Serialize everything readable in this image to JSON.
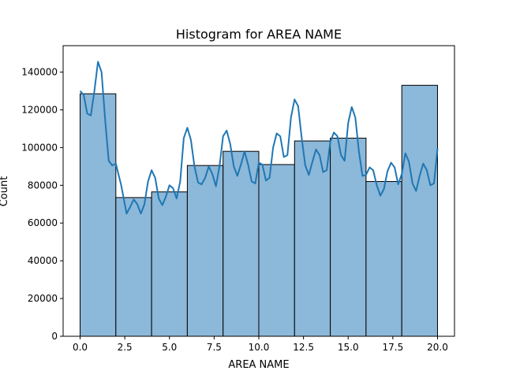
{
  "chart_data": {
    "type": "bar",
    "title": "Histogram for AREA NAME",
    "xlabel": "AREA NAME",
    "ylabel": "Count",
    "xlim": [
      -0.95,
      20.95
    ],
    "ylim": [
      0,
      154000
    ],
    "xticks": [
      0.0,
      2.5,
      5.0,
      7.5,
      10.0,
      12.5,
      15.0,
      17.5,
      20.0
    ],
    "xtick_labels": [
      "0.0",
      "2.5",
      "5.0",
      "7.5",
      "10.0",
      "12.5",
      "15.0",
      "17.5",
      "20.0"
    ],
    "yticks": [
      0,
      20000,
      40000,
      60000,
      80000,
      100000,
      120000,
      140000
    ],
    "ytick_labels": [
      "0",
      "20000",
      "40000",
      "60000",
      "80000",
      "100000",
      "120000",
      "140000"
    ],
    "bins": [
      {
        "x0": 0,
        "x1": 2,
        "count": 128500
      },
      {
        "x0": 2,
        "x1": 4,
        "count": 73500
      },
      {
        "x0": 4,
        "x1": 6,
        "count": 76500
      },
      {
        "x0": 6,
        "x1": 8,
        "count": 90500
      },
      {
        "x0": 8,
        "x1": 10,
        "count": 98000
      },
      {
        "x0": 10,
        "x1": 12,
        "count": 91000
      },
      {
        "x0": 12,
        "x1": 14,
        "count": 103500
      },
      {
        "x0": 14,
        "x1": 16,
        "count": 105000
      },
      {
        "x0": 16,
        "x1": 18,
        "count": 82000
      },
      {
        "x0": 18,
        "x1": 20,
        "count": 133000
      }
    ],
    "kde": {
      "x": [
        0,
        0.2,
        0.4,
        0.6,
        0.8,
        1.0,
        1.2,
        1.4,
        1.6,
        1.8,
        2.0,
        2.3,
        2.6,
        2.8,
        3.0,
        3.2,
        3.4,
        3.6,
        3.8,
        4.0,
        4.2,
        4.4,
        4.6,
        4.8,
        5.0,
        5.2,
        5.4,
        5.6,
        5.8,
        6.0,
        6.2,
        6.4,
        6.6,
        6.8,
        7.0,
        7.2,
        7.4,
        7.6,
        7.8,
        8.0,
        8.2,
        8.4,
        8.6,
        8.8,
        9.0,
        9.2,
        9.4,
        9.6,
        9.8,
        10.0,
        10.2,
        10.4,
        10.6,
        10.8,
        11.0,
        11.2,
        11.4,
        11.6,
        11.8,
        12.0,
        12.2,
        12.4,
        12.6,
        12.8,
        13.0,
        13.2,
        13.4,
        13.6,
        13.8,
        14.0,
        14.2,
        14.4,
        14.6,
        14.8,
        15.0,
        15.2,
        15.4,
        15.6,
        15.8,
        16.0,
        16.2,
        16.4,
        16.6,
        16.8,
        17.0,
        17.2,
        17.4,
        17.6,
        17.8,
        18.0,
        18.2,
        18.4,
        18.6,
        18.8,
        19.0,
        19.2,
        19.4,
        19.6,
        19.8,
        20.0
      ],
      "y": [
        130000,
        128000,
        118000,
        117000,
        130000,
        145500,
        140000,
        115000,
        93000,
        90500,
        91500,
        80000,
        65000,
        68500,
        72500,
        70000,
        65000,
        70000,
        82000,
        88000,
        84000,
        73000,
        69500,
        74000,
        80000,
        78500,
        73000,
        82000,
        105000,
        110500,
        104000,
        90000,
        81500,
        80500,
        84000,
        90000,
        86000,
        79500,
        90000,
        106000,
        109000,
        102000,
        90000,
        85000,
        91000,
        98000,
        91000,
        82000,
        81000,
        92000,
        91000,
        82500,
        84000,
        100000,
        107500,
        106000,
        95000,
        96000,
        116000,
        125500,
        122000,
        105000,
        90500,
        85500,
        92500,
        99000,
        96000,
        87000,
        88000,
        103000,
        108000,
        106000,
        96000,
        93000,
        113000,
        121500,
        116000,
        98000,
        85000,
        85500,
        89500,
        88000,
        80000,
        74500,
        78000,
        87500,
        92000,
        89500,
        80500,
        86000,
        97000,
        92500,
        81000,
        77000,
        85000,
        91500,
        88000,
        80000,
        81000,
        99500
      ]
    },
    "bar_color": "#8cb8d9",
    "bar_edge_color": "#000000",
    "line_color": "#1f77b4",
    "grid": false,
    "legend": "none"
  }
}
